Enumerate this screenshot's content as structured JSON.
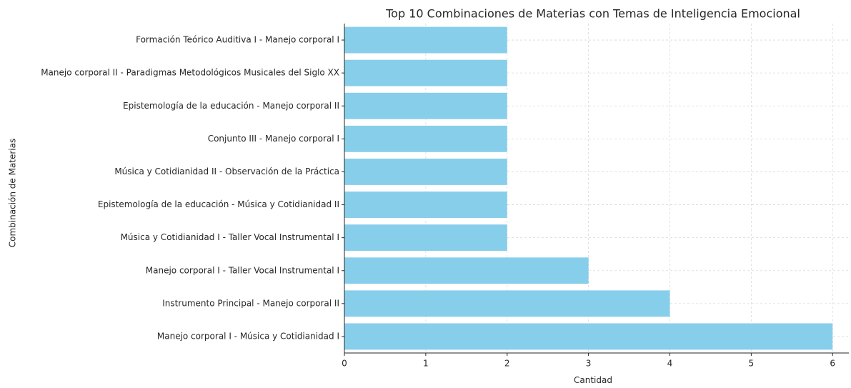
{
  "chart_data": {
    "type": "barh",
    "title": "Top 10 Combinaciones de Materias con Temas de Inteligencia Emocional",
    "x_label": "Cantidad",
    "y_label": "Combinación de Materias",
    "categories": [
      "Manejo corporal I - Música y Cotidianidad I",
      "Instrumento Principal - Manejo corporal II",
      "Manejo corporal I - Taller Vocal Instrumental I",
      "Música y Cotidianidad I - Taller Vocal Instrumental I",
      "Epistemología de la educación - Música y Cotidianidad II",
      "Música y Cotidianidad II - Observación de la Práctica",
      "Conjunto III - Manejo corporal I",
      "Epistemología de la educación - Manejo corporal II",
      "Manejo corporal II - Paradigmas Metodológicos Musicales del Siglo XX",
      "Formación Teórico Auditiva I - Manejo corporal I"
    ],
    "values": [
      6,
      4,
      3,
      2,
      2,
      2,
      2,
      2,
      2,
      2
    ],
    "color": "#87ceeb",
    "xlim": [
      0,
      6.2
    ],
    "xticks": [
      0,
      1,
      2,
      3,
      4,
      5,
      6
    ],
    "grid": true
  }
}
